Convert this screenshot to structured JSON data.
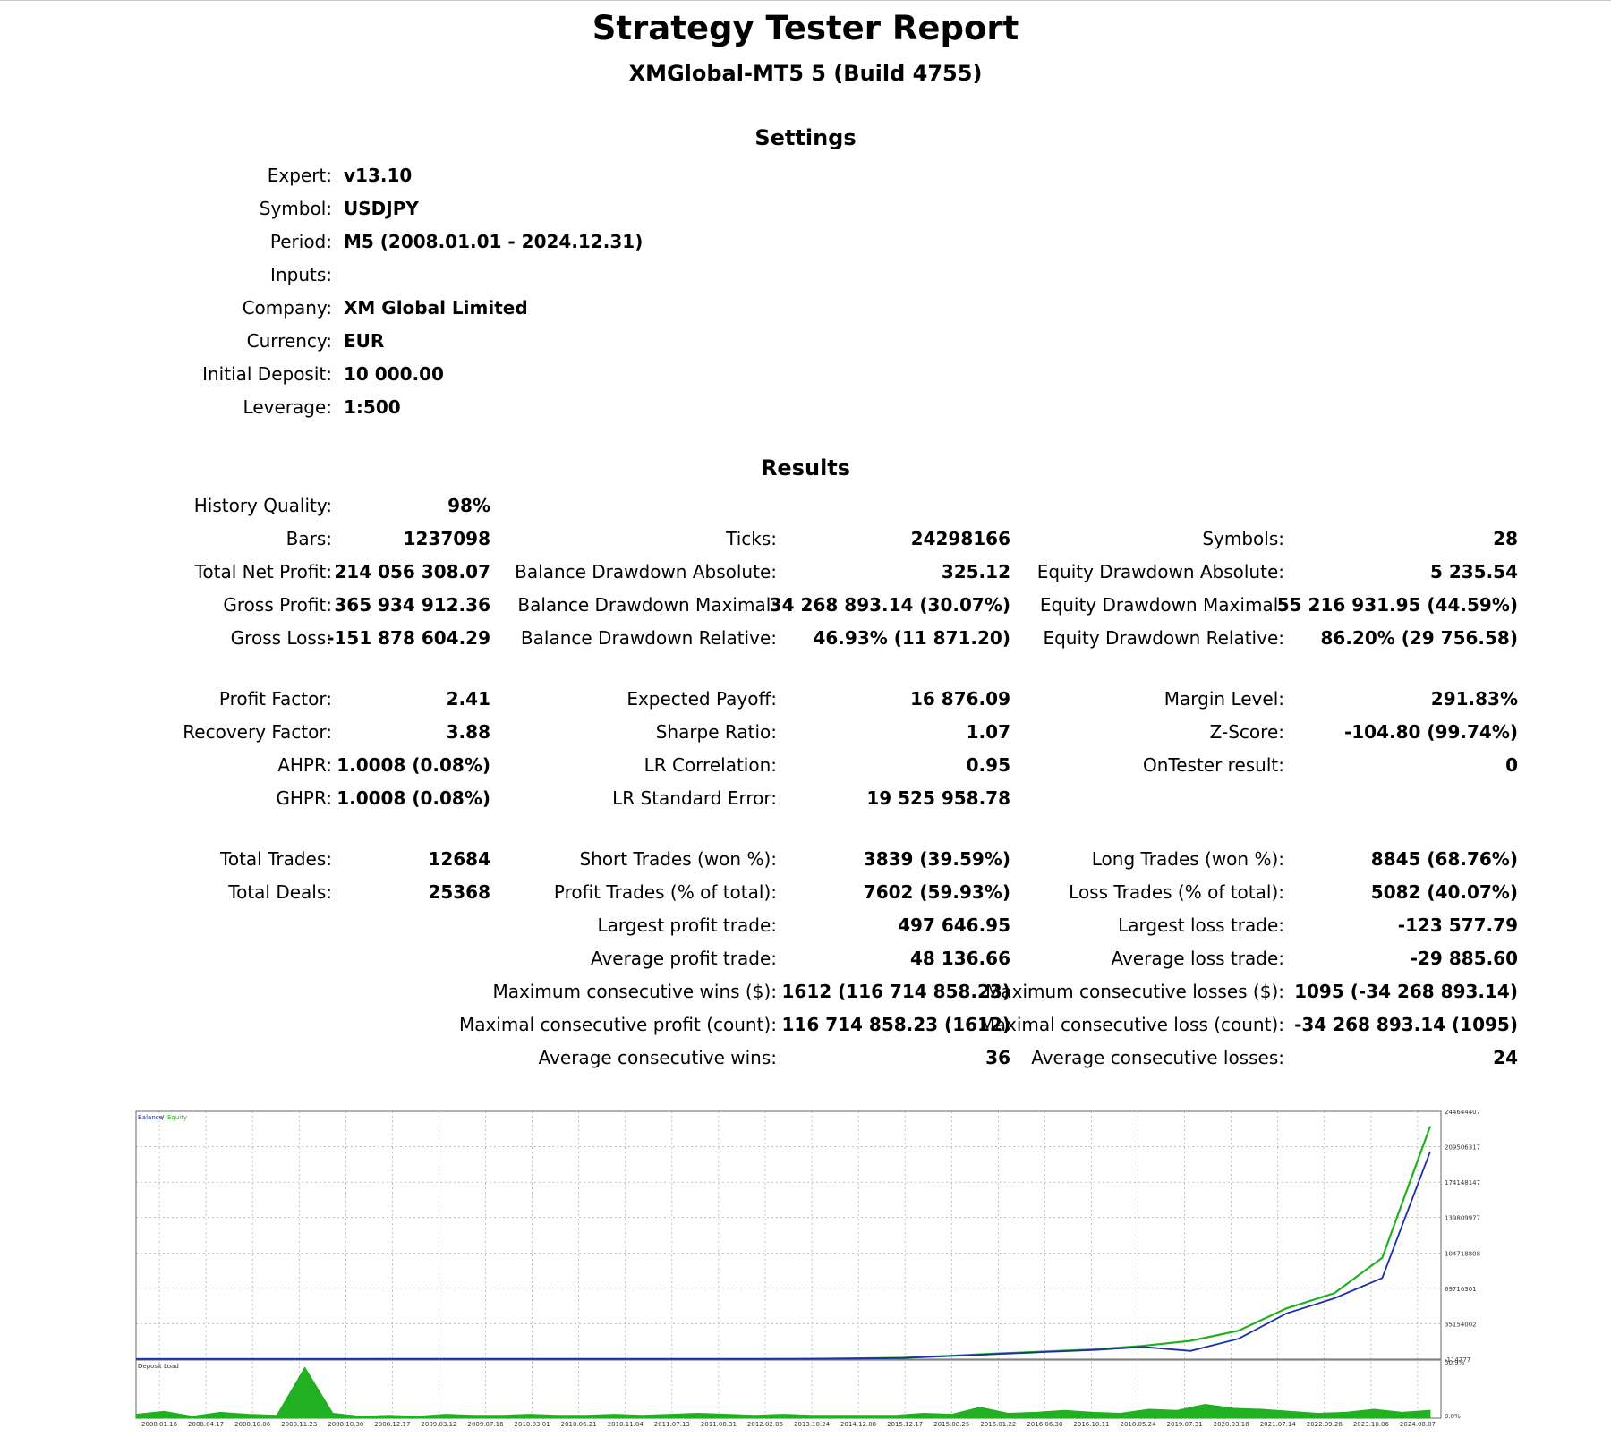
{
  "header": {
    "title": "Strategy Tester Report",
    "subtitle": "XMGlobal-MT5 5 (Build 4755)"
  },
  "settings": {
    "heading": "Settings",
    "rows": [
      {
        "label": "Expert:",
        "value": "v13.10"
      },
      {
        "label": "Symbol:",
        "value": "USDJPY"
      },
      {
        "label": "Period:",
        "value": "M5 (2008.01.01 - 2024.12.31)"
      },
      {
        "label": "Inputs:",
        "value": ""
      },
      {
        "label": "Company:",
        "value": "XM Global Limited"
      },
      {
        "label": "Currency:",
        "value": "EUR"
      },
      {
        "label": "Initial Deposit:",
        "value": "10 000.00"
      },
      {
        "label": "Leverage:",
        "value": "1:500"
      }
    ]
  },
  "results": {
    "heading": "Results",
    "col1": [
      {
        "label": "History Quality:",
        "value": "98%"
      },
      {
        "label": "Bars:",
        "value": "1237098"
      },
      {
        "label": "Total Net Profit:",
        "value": "214 056 308.07"
      },
      {
        "label": "Gross Profit:",
        "value": "365 934 912.36"
      },
      {
        "label": "Gross Loss:",
        "value": "-151 878 604.29"
      },
      {
        "label": "Profit Factor:",
        "value": "2.41"
      },
      {
        "label": "Recovery Factor:",
        "value": "3.88"
      },
      {
        "label": "AHPR:",
        "value": "1.0008 (0.08%)"
      },
      {
        "label": "GHPR:",
        "value": "1.0008 (0.08%)"
      },
      {
        "label": "Total Trades:",
        "value": "12684"
      },
      {
        "label": "Total Deals:",
        "value": "25368"
      }
    ],
    "col2": [
      {
        "label": "Ticks:",
        "value": "24298166"
      },
      {
        "label": "Balance Drawdown Absolute:",
        "value": "325.12"
      },
      {
        "label": "Balance Drawdown Maximal:",
        "value": "34 268 893.14 (30.07%)"
      },
      {
        "label": "Balance Drawdown Relative:",
        "value": "46.93% (11 871.20)"
      },
      {
        "label": "Expected Payoff:",
        "value": "16 876.09"
      },
      {
        "label": "Sharpe Ratio:",
        "value": "1.07"
      },
      {
        "label": "LR Correlation:",
        "value": "0.95"
      },
      {
        "label": "LR Standard Error:",
        "value": "19 525 958.78"
      },
      {
        "label": "Short Trades (won %):",
        "value": "3839 (39.59%)"
      },
      {
        "label": "Profit Trades (% of total):",
        "value": "7602 (59.93%)"
      },
      {
        "label": "Largest profit trade:",
        "value": "497 646.95"
      },
      {
        "label": "Average profit trade:",
        "value": "48 136.66"
      },
      {
        "label": "Maximum consecutive wins ($):",
        "value": "1612 (116 714 858.23)"
      },
      {
        "label": "Maximal consecutive profit (count):",
        "value": "116 714 858.23 (1612)"
      },
      {
        "label": "Average consecutive wins:",
        "value": "36"
      }
    ],
    "col3": [
      {
        "label": "Symbols:",
        "value": "28"
      },
      {
        "label": "Equity Drawdown Absolute:",
        "value": "5 235.54"
      },
      {
        "label": "Equity Drawdown Maximal:",
        "value": "55 216 931.95 (44.59%)"
      },
      {
        "label": "Equity Drawdown Relative:",
        "value": "86.20% (29 756.58)"
      },
      {
        "label": "Margin Level:",
        "value": "291.83%"
      },
      {
        "label": "Z-Score:",
        "value": "-104.80 (99.74%)"
      },
      {
        "label": "OnTester result:",
        "value": "0"
      },
      {
        "label": "Long Trades (won %):",
        "value": "8845 (68.76%)"
      },
      {
        "label": "Loss Trades (% of total):",
        "value": "5082 (40.07%)"
      },
      {
        "label": "Largest loss trade:",
        "value": "-123 577.79"
      },
      {
        "label": "Average loss trade:",
        "value": "-29 885.60"
      },
      {
        "label": "Maximum consecutive losses ($):",
        "value": "1095 (-34 268 893.14)"
      },
      {
        "label": "Maximal consecutive loss (count):",
        "value": "-34 268 893.14 (1095)"
      },
      {
        "label": "Average consecutive losses:",
        "value": "24"
      }
    ]
  },
  "chart_data": [
    {
      "type": "line",
      "legend": [
        "Balance",
        "Equity"
      ],
      "colors": {
        "Balance": "#1a2fa8",
        "Equity": "#21b021",
        "grid": "#9a9a9a",
        "load": "#21b021"
      },
      "y_ticks": [
        "244644407",
        "209506317",
        "174148147",
        "139809977",
        "104718808",
        "69716301",
        "35154002",
        "-114777"
      ],
      "x": [
        "2008.01.16",
        "2008.04.17",
        "2008.10.06",
        "2008.11.23",
        "2008.10.30",
        "2008.12.17",
        "2009.03.12",
        "2009.07.16",
        "2010.03.01",
        "2010.06.21",
        "2010.11.04",
        "2011.07.13",
        "2011.08.31",
        "2012.02.06",
        "2013.10.24",
        "2014.12.08",
        "2015.12.17",
        "2015.08.25",
        "2016.01.22",
        "2016.06.30",
        "2016.10.11",
        "2018.05.24",
        "2019.07.31",
        "2020.03.18",
        "2021.07.14",
        "2022.09.28",
        "2023.10.06",
        "2024.08.07"
      ],
      "series": [
        {
          "name": "Balance",
          "values": [
            10000,
            10000,
            12000,
            15000,
            15000,
            18000,
            20000,
            25000,
            30000,
            40000,
            50000,
            60000,
            80000,
            100000,
            150000,
            500000,
            1000000,
            3000000,
            5000000,
            7000000,
            9000000,
            12000000,
            8000000,
            20000000,
            45000000,
            60000000,
            80000000,
            205000000
          ]
        },
        {
          "name": "Equity",
          "values": [
            10000,
            10000,
            12000,
            15000,
            15000,
            18000,
            20000,
            25000,
            30000,
            40000,
            50000,
            60000,
            80000,
            100000,
            150000,
            600000,
            1200000,
            3200000,
            5500000,
            7500000,
            9500000,
            13000000,
            18000000,
            28000000,
            50000000,
            65000000,
            100000000,
            230000000
          ]
        }
      ]
    },
    {
      "type": "area",
      "title": "Deposit Load",
      "y_ticks": [
        "50.9%",
        "0.0%"
      ],
      "values": [
        4,
        7,
        2,
        6,
        4,
        3,
        51,
        5,
        2,
        3,
        2,
        4,
        3,
        3,
        4,
        3,
        3,
        4,
        3,
        4,
        5,
        4,
        3,
        4,
        3,
        3,
        3,
        3,
        5,
        4,
        11,
        5,
        6,
        8,
        6,
        5,
        9,
        8,
        14,
        10,
        9,
        7,
        5,
        6,
        9,
        6,
        8
      ]
    }
  ]
}
